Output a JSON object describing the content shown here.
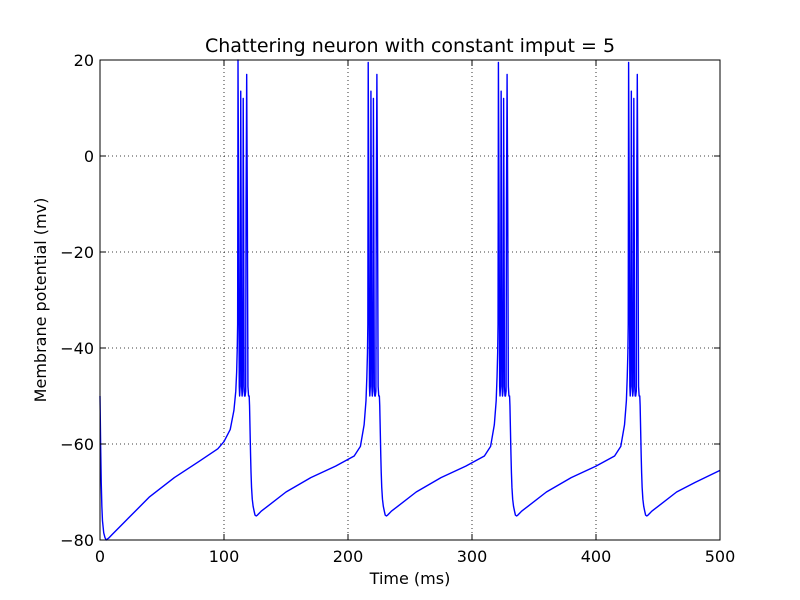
{
  "chart_data": {
    "type": "line",
    "title": "Chattering neuron with constant imput = 5",
    "xlabel": "Time (ms)",
    "ylabel": "Membrane potential (mv)",
    "xlim": [
      0,
      500
    ],
    "ylim": [
      -80,
      20
    ],
    "xticks": [
      0,
      100,
      200,
      300,
      400,
      500
    ],
    "yticks": [
      -80,
      -60,
      -40,
      -20,
      0,
      20
    ],
    "xtick_labels": [
      "0",
      "100",
      "200",
      "300",
      "400",
      "500"
    ],
    "ytick_labels": [
      "−80",
      "−60",
      "−40",
      "−20",
      "0",
      "20"
    ],
    "grid": true,
    "series": [
      {
        "color": "#0000ff",
        "x": [
          0,
          0.5,
          1,
          1.5,
          2,
          3,
          4,
          5,
          7,
          10,
          20,
          40,
          60,
          80,
          95,
          100,
          105,
          108,
          109.5,
          110.2,
          110.7,
          111.0,
          111.3,
          111.8,
          112.3,
          112.6,
          113.0,
          113.5,
          113.8,
          114.2,
          114.6,
          115.0,
          115.5,
          115.8,
          116.2,
          116.6,
          117.0,
          117.5,
          117.8,
          118.3,
          118.8,
          119.3,
          119.8,
          120.3,
          120.6,
          121.0,
          121.4,
          121.8,
          122.2,
          122.8,
          123.5,
          124.3,
          125.0,
          126.0,
          127.0,
          128.5,
          130.0,
          135,
          150,
          170,
          190,
          205,
          210,
          213,
          214.5,
          215.2,
          215.7,
          216.0,
          216.3,
          216.8,
          217.3,
          217.6,
          218.0,
          218.5,
          218.8,
          219.2,
          219.6,
          220.0,
          220.5,
          220.8,
          221.2,
          221.6,
          222.0,
          222.5,
          222.8,
          223.3,
          223.8,
          224.3,
          224.8,
          225.3,
          225.6,
          226.0,
          226.4,
          226.8,
          227.2,
          227.8,
          228.5,
          229.3,
          230.0,
          231.0,
          232.0,
          233.5,
          235.0,
          240,
          255,
          275,
          295,
          310,
          315,
          318,
          319.5,
          320.2,
          320.7,
          321.0,
          321.3,
          321.8,
          322.3,
          322.6,
          323.0,
          323.5,
          323.8,
          324.2,
          324.6,
          325.0,
          325.5,
          325.8,
          326.2,
          326.6,
          327.0,
          327.5,
          327.8,
          328.3,
          328.8,
          329.3,
          329.8,
          330.3,
          330.6,
          331.0,
          331.4,
          331.8,
          332.2,
          332.8,
          333.5,
          334.3,
          335.0,
          336.0,
          337.0,
          338.5,
          340.0,
          345,
          360,
          380,
          400,
          415,
          420,
          423,
          424.5,
          425.2,
          425.7,
          426.0,
          426.3,
          426.8,
          427.3,
          427.6,
          428.0,
          428.5,
          428.8,
          429.2,
          429.6,
          430.0,
          430.5,
          430.8,
          431.2,
          431.6,
          432.0,
          432.5,
          432.8,
          433.3,
          433.8,
          434.3,
          434.8,
          435.3,
          435.6,
          436.0,
          436.4,
          436.8,
          437.2,
          437.8,
          438.5,
          439.3,
          440.0,
          441.0,
          442.0,
          443.5,
          445.0,
          450,
          465,
          480,
          500
        ],
        "y": [
          -50,
          -60,
          -68,
          -73,
          -76,
          -78.5,
          -79.5,
          -80,
          -79.6,
          -78.8,
          -76.2,
          -71,
          -67,
          -63.6,
          -61,
          -59.5,
          -57,
          -53,
          -49,
          -45,
          -40,
          -35,
          20,
          -10,
          -48,
          -50,
          -48,
          13.5,
          -10,
          -48,
          -50,
          -49,
          12,
          -10,
          -48,
          -50,
          -50,
          -49,
          -10,
          17,
          -10,
          -48,
          -50,
          -50,
          -52,
          -57,
          -62,
          -66,
          -69,
          -71.5,
          -73,
          -74,
          -74.8,
          -75,
          -74.8,
          -74.4,
          -74,
          -73,
          -70,
          -67,
          -64.6,
          -62.5,
          -60.5,
          -56,
          -51,
          -46,
          -41,
          -35,
          19.5,
          -10,
          -48,
          -50,
          -48,
          13.5,
          -10,
          -48,
          -50,
          -49,
          12,
          -10,
          -48,
          -50,
          -50,
          -49,
          -10,
          17,
          -10,
          -48,
          -50,
          -50,
          -52,
          -57,
          -62,
          -66,
          -69,
          -71.5,
          -73,
          -74,
          -74.8,
          -75,
          -74.8,
          -74.4,
          -74,
          -73,
          -70,
          -67,
          -64.6,
          -62.5,
          -60.5,
          -56,
          -51,
          -46,
          -41,
          -35,
          19.5,
          -10,
          -48,
          -50,
          -48,
          13.5,
          -10,
          -48,
          -50,
          -49,
          12,
          -10,
          -48,
          -50,
          -50,
          -49,
          -10,
          17,
          -10,
          -48,
          -50,
          -50,
          -52,
          -57,
          -62,
          -66,
          -69,
          -71.5,
          -73,
          -74,
          -74.8,
          -75,
          -74.8,
          -74.4,
          -74,
          -73,
          -70,
          -67,
          -64.6,
          -62.5,
          -60.5,
          -56,
          -51,
          -46,
          -41,
          -35,
          19.5,
          -10,
          -48,
          -50,
          -48,
          13.5,
          -10,
          -48,
          -50,
          -49,
          12,
          -10,
          -48,
          -50,
          -50,
          -49,
          -10,
          17,
          -10,
          -48,
          -50,
          -50,
          -52,
          -57,
          -62,
          -66,
          -69,
          -71.5,
          -73,
          -74,
          -74.8,
          -75,
          -74.8,
          -74.4,
          -74,
          -73,
          -70,
          -68,
          -65.5
        ]
      }
    ]
  }
}
